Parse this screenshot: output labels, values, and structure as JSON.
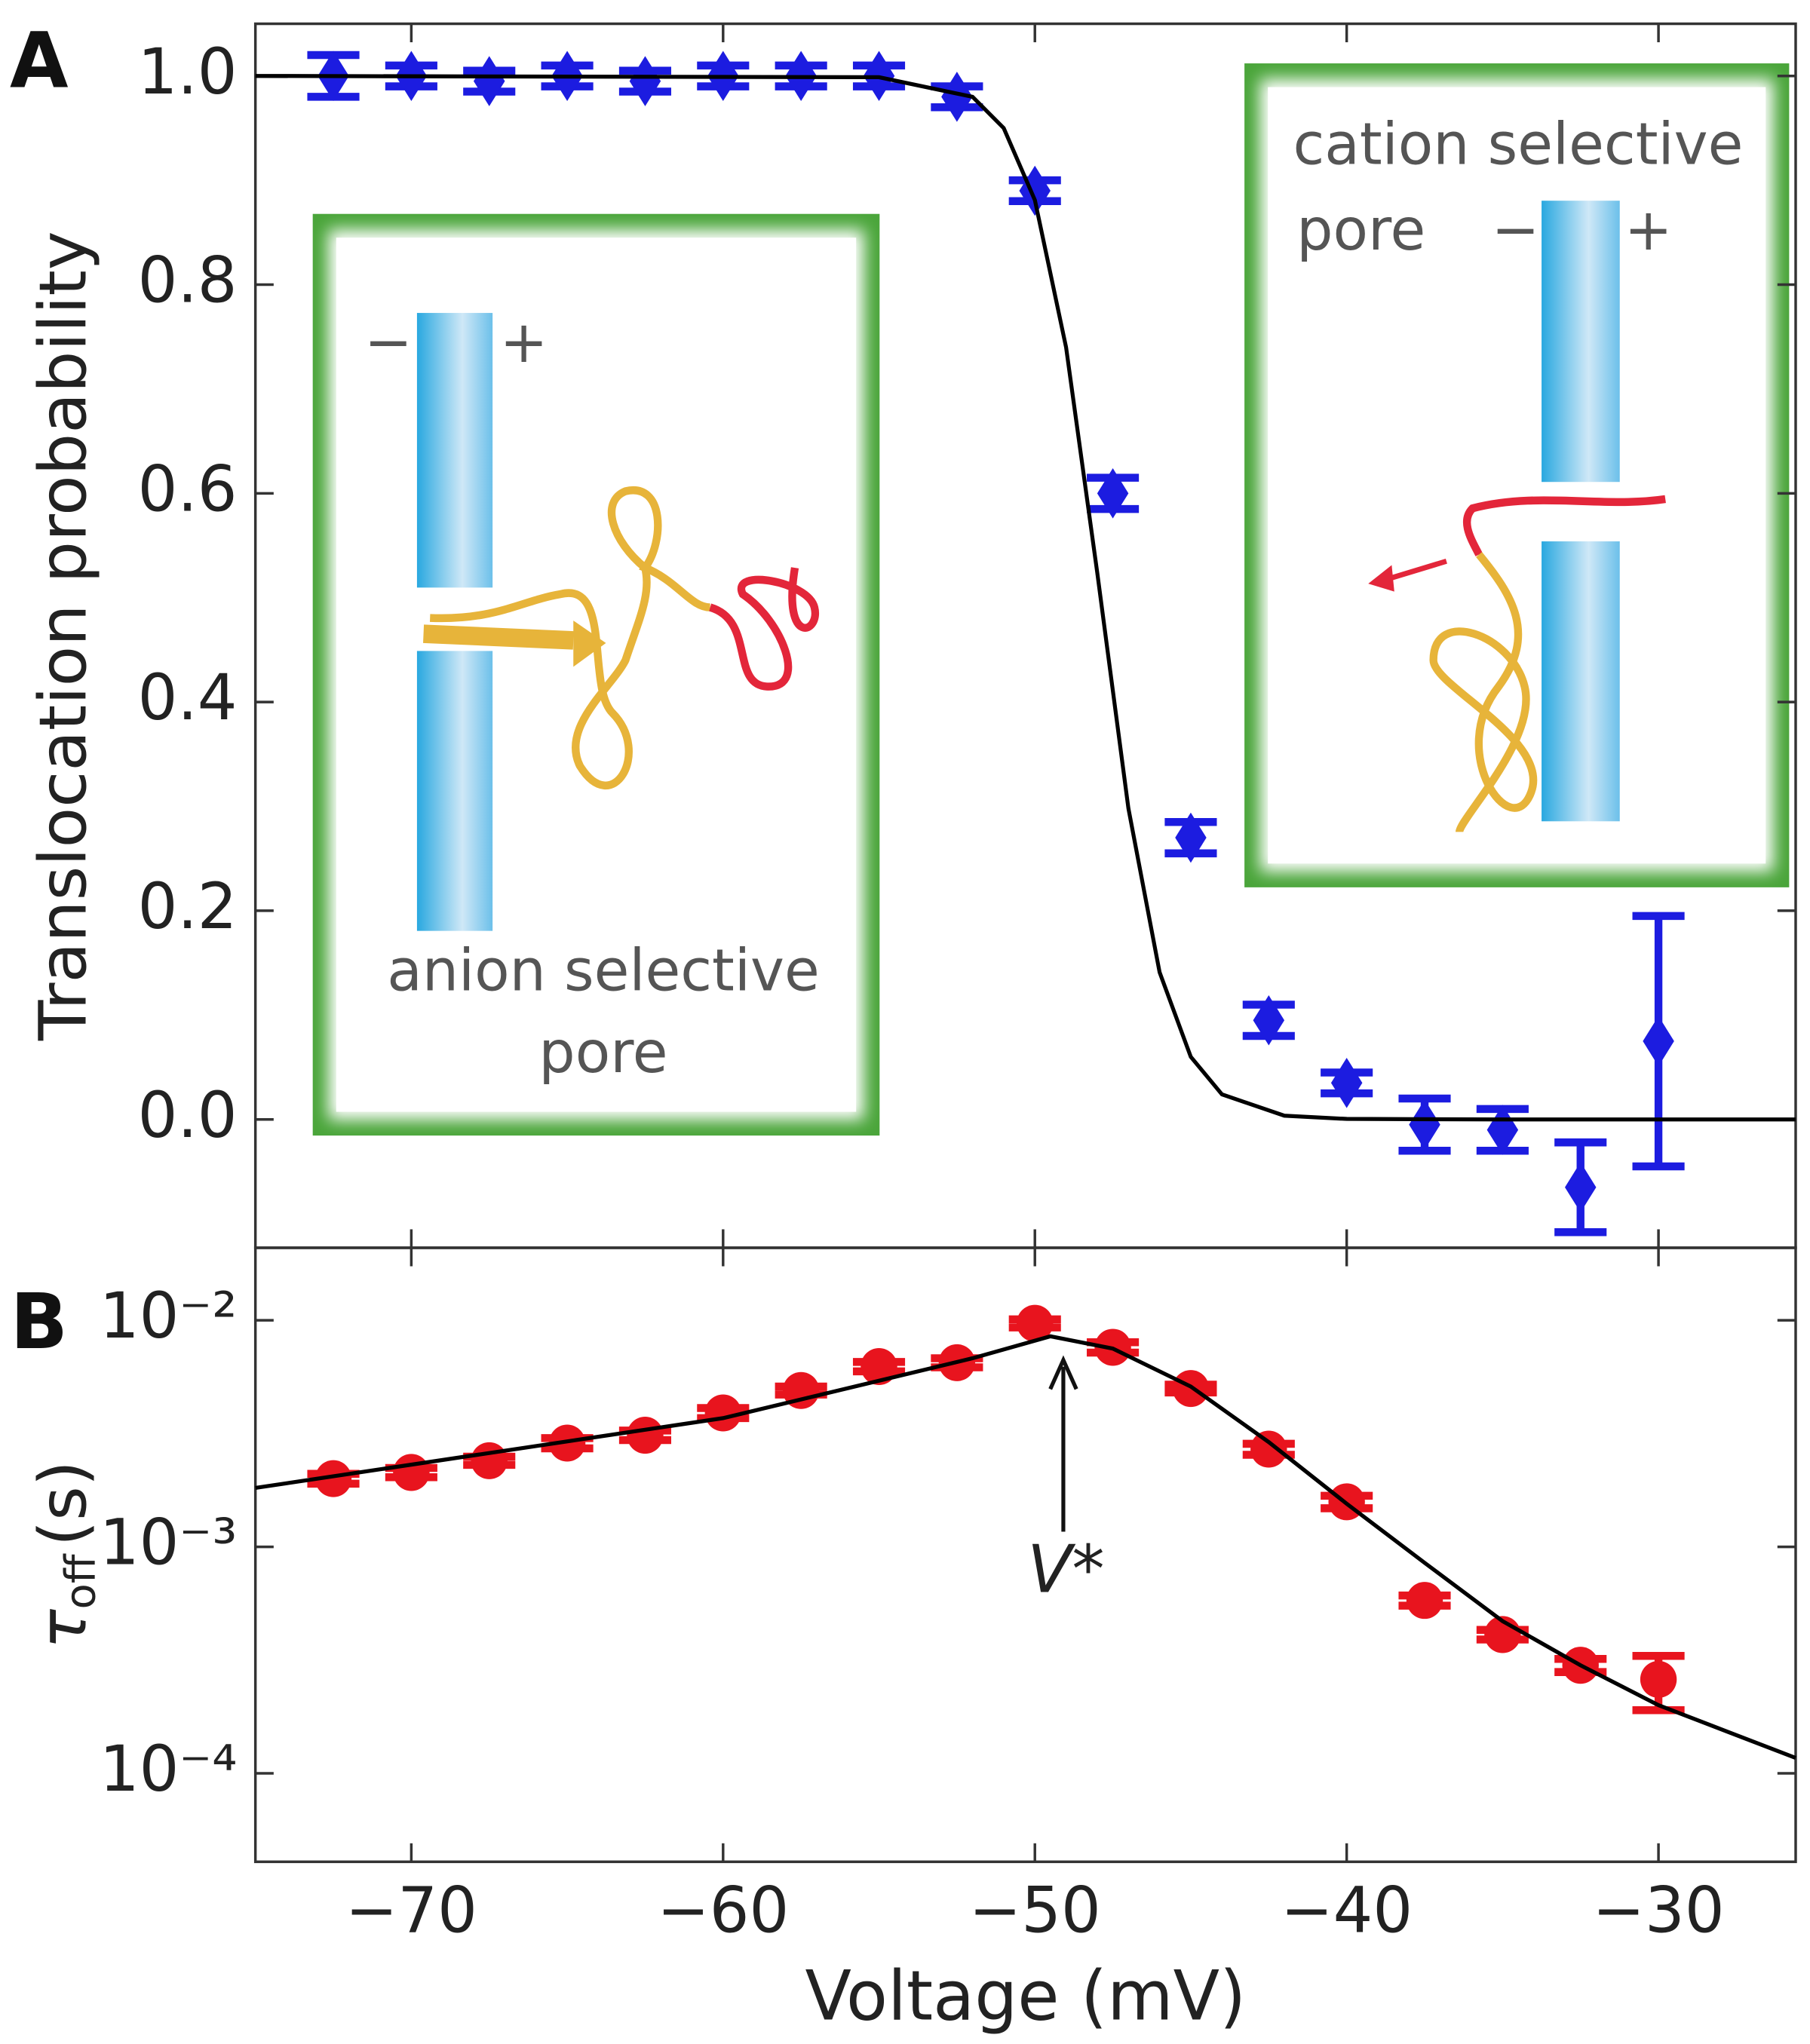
{
  "chart_data": [
    {
      "type": "scatter",
      "panel_label": "A",
      "y_label": "Translocation probability",
      "xlim": [
        -75,
        -25.6
      ],
      "xticks": [
        -70,
        -60,
        -50,
        -40,
        -30
      ],
      "ylim": [
        -0.123,
        1.05
      ],
      "yticks": [
        {
          "value": 0,
          "label": "0.0"
        },
        0.2,
        0.4,
        0.6,
        0.8,
        {
          "value": 1,
          "label": "1.0"
        }
      ],
      "series": [
        {
          "style": "points",
          "marker": "diamond",
          "color": "#1c1ce0",
          "x": [
            -72.5,
            -70,
            -67.5,
            -65,
            -62.5,
            -60,
            -57.5,
            -55,
            -52.5,
            -50,
            -47.5,
            -45,
            -42.5,
            -40,
            -37.5,
            -35,
            -32.5,
            -30
          ],
          "values": [
            1.0,
            1.0,
            0.995,
            1.0,
            0.995,
            1.0,
            1.0,
            1.0,
            0.98,
            0.89,
            0.6,
            0.27,
            0.095,
            0.035,
            -0.005,
            -0.01,
            -0.065,
            0.075
          ],
          "errors": [
            0.02,
            0.01,
            0.01,
            0.01,
            0.01,
            0.01,
            0.01,
            0.01,
            0.01,
            0.01,
            0.015,
            0.015,
            0.015,
            0.01,
            0.025,
            0.02,
            0.043,
            0.12
          ]
        },
        {
          "style": "line",
          "color": "#000000",
          "x": [
            -75,
            -55,
            -52,
            -51,
            -50,
            -49,
            -48,
            -47,
            -46,
            -45,
            -44,
            -42,
            -40,
            -35,
            -25.6
          ],
          "values": [
            1.0,
            0.9988,
            0.98,
            0.95,
            0.881,
            0.74,
            0.524,
            0.298,
            0.141,
            0.06,
            0.024,
            0.0036,
            0.0005,
            0,
            0
          ]
        }
      ],
      "insets": [
        {
          "lines": [
            "anion selective",
            "pore"
          ],
          "minus": "−",
          "plus": "+"
        },
        {
          "lines": [
            "cation selective",
            "pore"
          ],
          "minus": "−",
          "plus": "+"
        }
      ]
    },
    {
      "type": "scatter",
      "panel_label": "B",
      "log_y": true,
      "y_label": {
        "symbol": "τ",
        "subscript": "off",
        "unit": "(s)"
      },
      "x_label": "Voltage (mV)",
      "xlim": [
        -75,
        -25.6
      ],
      "xticks": [
        {
          "value": -70,
          "label": "−70"
        },
        {
          "value": -60,
          "label": "−60"
        },
        {
          "value": -50,
          "label": "−50"
        },
        {
          "value": -40,
          "label": "−40"
        },
        {
          "value": -30,
          "label": "−30"
        }
      ],
      "ylim": [
        4.07e-05,
        0.0209
      ],
      "yticks": [
        {
          "value": 0.0001,
          "label": "10⁻⁴"
        },
        {
          "value": 0.001,
          "label": "10⁻³"
        },
        {
          "value": 0.01,
          "label": "10⁻²"
        }
      ],
      "annotation": "V*",
      "series": [
        {
          "style": "points",
          "marker": "circle",
          "color": "#e8141e",
          "x": [
            -72.5,
            -70,
            -67.5,
            -65,
            -62.5,
            -60,
            -57.5,
            -55,
            -52.5,
            -50,
            -47.5,
            -45,
            -42.5,
            -40,
            -37.5,
            -35,
            -32.5,
            -30
          ],
          "values": [
            0.002,
            0.00213,
            0.0024,
            0.00287,
            0.00311,
            0.0039,
            0.0049,
            0.00625,
            0.0065,
            0.0097,
            0.0076,
            0.005,
            0.0027,
            0.00158,
            0.00058,
            0.00041,
            0.0003,
            0.00026
          ],
          "errors": [
            0.0001,
            0.0001,
            0.0001,
            0.00015,
            0.00015,
            0.0002,
            0.0002,
            0.0003,
            0.0003,
            0.0004,
            0.0004,
            0.0002,
            0.00015,
            0.0001,
            3e-05,
            2e-05,
            2e-05,
            7e-05
          ]
        },
        {
          "style": "line",
          "color": "#000000",
          "x": [
            -75,
            -60,
            -52,
            -49.5,
            -47.5,
            -45,
            -42.5,
            -40,
            -37.5,
            -35,
            -32.5,
            -30,
            -25.6
          ],
          "values": [
            0.00182,
            0.0037,
            0.0068,
            0.0085,
            0.0075,
            0.0051,
            0.0029,
            0.00155,
            0.00085,
            0.00047,
            0.0003,
            0.0002,
            0.000117
          ]
        }
      ]
    }
  ]
}
